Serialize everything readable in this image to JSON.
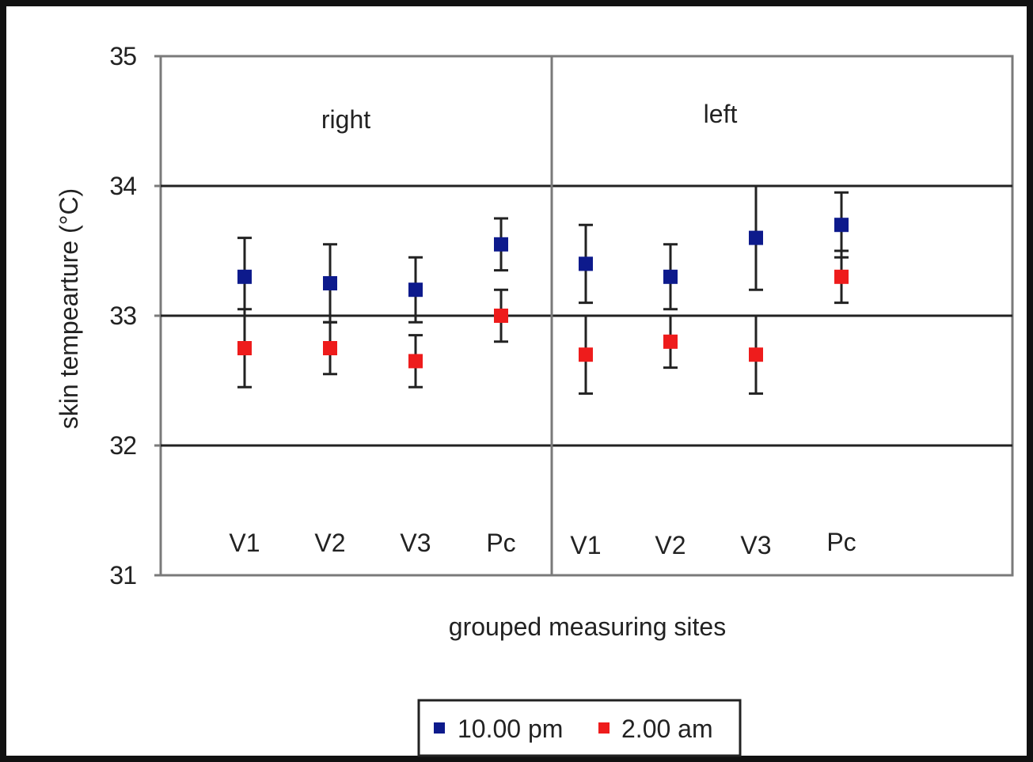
{
  "chart_data": {
    "type": "scatter",
    "title": "",
    "xlabel": "grouped measuring sites",
    "ylabel": "skin tempearture (°C)",
    "ylim": [
      31,
      35
    ],
    "yticks": [
      "35",
      "34",
      "33",
      "32",
      "31"
    ],
    "grid": true,
    "legend_placement": "bottom-center",
    "panels": [
      {
        "label": "right",
        "categories": [
          "V1",
          "V2",
          "V3",
          "Pc"
        ]
      },
      {
        "label": "left",
        "categories": [
          "V1",
          "V2",
          "V3",
          "Pc"
        ]
      }
    ],
    "series": [
      {
        "name": "10.00 pm",
        "color": "#0d1a8c",
        "values": [
          33.3,
          33.25,
          33.2,
          33.55,
          33.4,
          33.3,
          33.6,
          33.7
        ],
        "error": [
          0.3,
          0.3,
          0.25,
          0.2,
          0.3,
          0.25,
          0.4,
          0.25
        ]
      },
      {
        "name": "2.00 am",
        "color": "#ee1c1c",
        "values": [
          32.75,
          32.75,
          32.65,
          33.0,
          32.7,
          32.8,
          32.7,
          33.3
        ],
        "error": [
          0.3,
          0.2,
          0.2,
          0.2,
          0.3,
          0.2,
          0.3,
          0.2
        ]
      }
    ]
  }
}
